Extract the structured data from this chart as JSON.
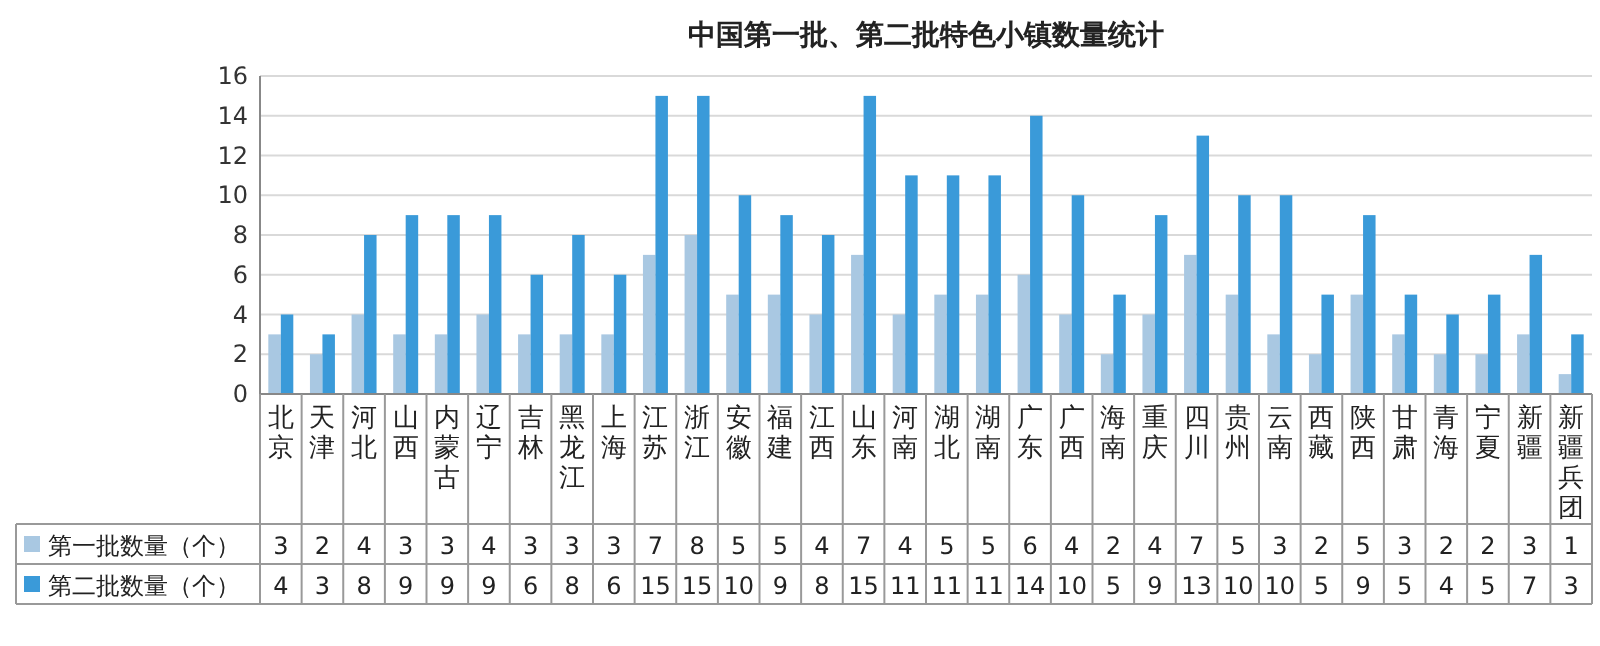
{
  "chart_data": {
    "type": "bar",
    "title": "中国第一批、第二批特色小镇数量统计",
    "categories": [
      "北京",
      "天津",
      "河北",
      "山西",
      "内蒙古",
      "辽宁",
      "吉林",
      "黑龙江",
      "上海",
      "江苏",
      "浙江",
      "安徽",
      "福建",
      "江西",
      "山东",
      "河南",
      "湖北",
      "湖南",
      "广东",
      "广西",
      "海南",
      "重庆",
      "四川",
      "贵州",
      "云南",
      "西藏",
      "陕西",
      "甘肃",
      "青海",
      "宁夏",
      "新疆",
      "新疆兵团"
    ],
    "series": [
      {
        "name": "第一批数量（个）",
        "color": "#a9c8e2",
        "values": [
          3,
          2,
          4,
          3,
          3,
          4,
          3,
          3,
          3,
          7,
          8,
          5,
          5,
          4,
          7,
          4,
          5,
          5,
          6,
          4,
          2,
          4,
          7,
          5,
          3,
          2,
          5,
          3,
          2,
          2,
          3,
          1
        ]
      },
      {
        "name": "第二批数量（个）",
        "color": "#3a9ad9",
        "values": [
          4,
          3,
          8,
          9,
          9,
          9,
          6,
          8,
          6,
          15,
          15,
          10,
          9,
          8,
          15,
          11,
          11,
          11,
          14,
          10,
          5,
          9,
          13,
          10,
          10,
          5,
          9,
          5,
          4,
          5,
          7,
          3
        ]
      }
    ],
    "ylim": [
      0,
      16
    ],
    "yticks": [
      0,
      2,
      4,
      6,
      8,
      10,
      12,
      14,
      16
    ],
    "grid": "y",
    "legend": "bottom left",
    "data_labels": true
  }
}
